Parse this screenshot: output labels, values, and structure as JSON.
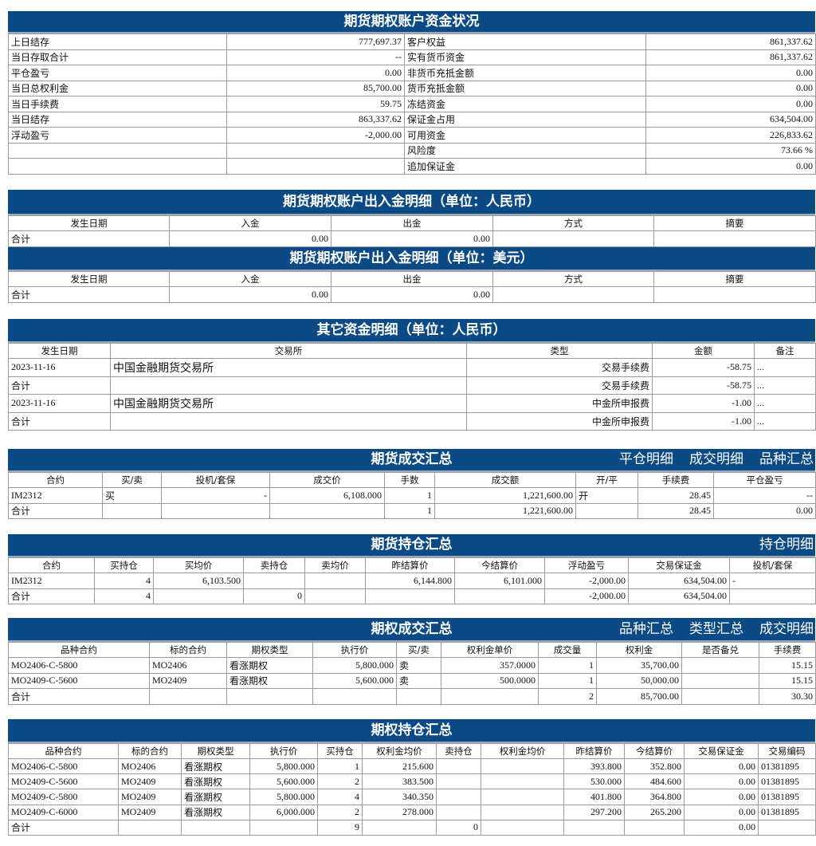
{
  "colors": {
    "header_bg": "#0c4a86",
    "header_text": "#ffffff",
    "border": "#9a9a9a"
  },
  "sections": [
    {
      "title": "期货期权账户资金状况",
      "links": [],
      "columns": [],
      "rows": [
        [
          "上日结存",
          "777,697.37",
          "客户权益",
          "861,337.62"
        ],
        [
          "当日存取合计",
          "--",
          "实有货币资金",
          "861,337.62"
        ],
        [
          "平仓盈亏",
          "0.00",
          "非货币充抵金额",
          "0.00"
        ],
        [
          "当日总权利金",
          "85,700.00",
          "货币充抵金额",
          "0.00"
        ],
        [
          "当日手续费",
          "59.75",
          "冻结资金",
          "0.00"
        ],
        [
          "当日结存",
          "863,337.62",
          "保证金占用",
          "634,504.00"
        ],
        [
          "浮动盈亏",
          "-2,000.00",
          "可用资金",
          "226,833.62"
        ],
        [
          "",
          "",
          "风险度",
          "73.66 %"
        ],
        [
          "",
          "",
          "追加保证金",
          "0.00"
        ]
      ]
    },
    {
      "title": "期货期权账户出入金明细（单位：人民币）",
      "links": [],
      "columns": [
        "发生日期",
        "入金",
        "出金",
        "方式",
        "摘要"
      ],
      "rows": [
        [
          "合计",
          "0.00",
          "0.00",
          "",
          ""
        ]
      ]
    },
    {
      "title": "期货期权账户出入金明细（单位：美元）",
      "links": [],
      "columns": [
        "发生日期",
        "入金",
        "出金",
        "方式",
        "摘要"
      ],
      "rows": [
        [
          "合计",
          "0.00",
          "0.00",
          "",
          ""
        ]
      ]
    },
    {
      "title": "其它资金明细（单位：人民币）",
      "links": [],
      "columns": [
        "发生日期",
        "交易所",
        "类型",
        "金额",
        "备注"
      ],
      "rows": [
        [
          "2023-11-16",
          "中国金融期货交易所",
          "交易手续费",
          "-58.75",
          "..."
        ],
        [
          "合计",
          "",
          "交易手续费",
          "-58.75",
          "..."
        ],
        [
          "2023-11-16",
          "中国金融期货交易所",
          "中金所申报费",
          "-1.00",
          "..."
        ],
        [
          "合计",
          "",
          "中金所申报费",
          "-1.00",
          "..."
        ]
      ]
    },
    {
      "title": "期货成交汇总",
      "links": [
        "平仓明细",
        "成交明细",
        "品种汇总"
      ],
      "columns": [
        "合约",
        "买/卖",
        "投机/套保",
        "成交价",
        "手数",
        "成交额",
        "开/平",
        "手续费",
        "平仓盈亏"
      ],
      "rows": [
        [
          "IM2312",
          "买",
          "-",
          "6,108.000",
          "1",
          "1,221,600.00",
          "开",
          "28.45",
          "--"
        ],
        [
          "合计",
          "",
          "",
          "",
          "1",
          "1,221,600.00",
          "",
          "28.45",
          "0.00"
        ]
      ]
    },
    {
      "title": "期货持仓汇总",
      "links": [
        "持仓明细"
      ],
      "columns": [
        "合约",
        "买持仓",
        "买均价",
        "卖持仓",
        "卖均价",
        "昨结算价",
        "今结算价",
        "浮动盈亏",
        "交易保证金",
        "投机/套保"
      ],
      "rows": [
        [
          "IM2312",
          "4",
          "6,103.500",
          "",
          "",
          "6,144.800",
          "6,101.000",
          "-2,000.00",
          "634,504.00",
          "-"
        ],
        [
          "合计",
          "4",
          "",
          "0",
          "",
          "",
          "",
          "-2,000.00",
          "634,504.00",
          ""
        ]
      ]
    },
    {
      "title": "期权成交汇总",
      "links": [
        "品种汇总",
        "类型汇总",
        "成交明细"
      ],
      "columns": [
        "品种合约",
        "标的合约",
        "期权类型",
        "执行价",
        "买/卖",
        "权利金单价",
        "成交量",
        "权利金",
        "是否备兑",
        "手续费"
      ],
      "rows": [
        [
          "MO2406-C-5800",
          "MO2406",
          "看涨期权",
          "5,800.000",
          "卖",
          "357.0000",
          "1",
          "35,700.00",
          "",
          "15.15"
        ],
        [
          "MO2409-C-5600",
          "MO2409",
          "看涨期权",
          "5,600.000",
          "卖",
          "500.0000",
          "1",
          "50,000.00",
          "",
          "15.15"
        ],
        [
          "合计",
          "",
          "",
          "",
          "",
          "",
          "2",
          "85,700.00",
          "",
          "30.30"
        ]
      ]
    },
    {
      "title": "期权持仓汇总",
      "links": [],
      "columns": [
        "品种合约",
        "标的合约",
        "期权类型",
        "执行价",
        "买持仓",
        "权利金均价",
        "卖持仓",
        "权利金均价",
        "昨结算价",
        "今结算价",
        "交易保证金",
        "交易编码"
      ],
      "rows": [
        [
          "MO2406-C-5800",
          "MO2406",
          "看涨期权",
          "5,800.000",
          "1",
          "215.600",
          "",
          "",
          "393.800",
          "352.800",
          "0.00",
          "01381895"
        ],
        [
          "MO2409-C-5600",
          "MO2409",
          "看涨期权",
          "5,600.000",
          "2",
          "383.500",
          "",
          "",
          "530.000",
          "484.600",
          "0.00",
          "01381895"
        ],
        [
          "MO2409-C-5800",
          "MO2409",
          "看涨期权",
          "5,800.000",
          "4",
          "340.350",
          "",
          "",
          "401.800",
          "364.800",
          "0.00",
          "01381895"
        ],
        [
          "MO2409-C-6000",
          "MO2409",
          "看涨期权",
          "6,000.000",
          "2",
          "278.000",
          "",
          "",
          "297.200",
          "265.200",
          "0.00",
          "01381895"
        ],
        [
          "合计",
          "",
          "",
          "",
          "9",
          "",
          "0",
          "",
          "",
          "",
          "0.00",
          ""
        ]
      ]
    }
  ]
}
